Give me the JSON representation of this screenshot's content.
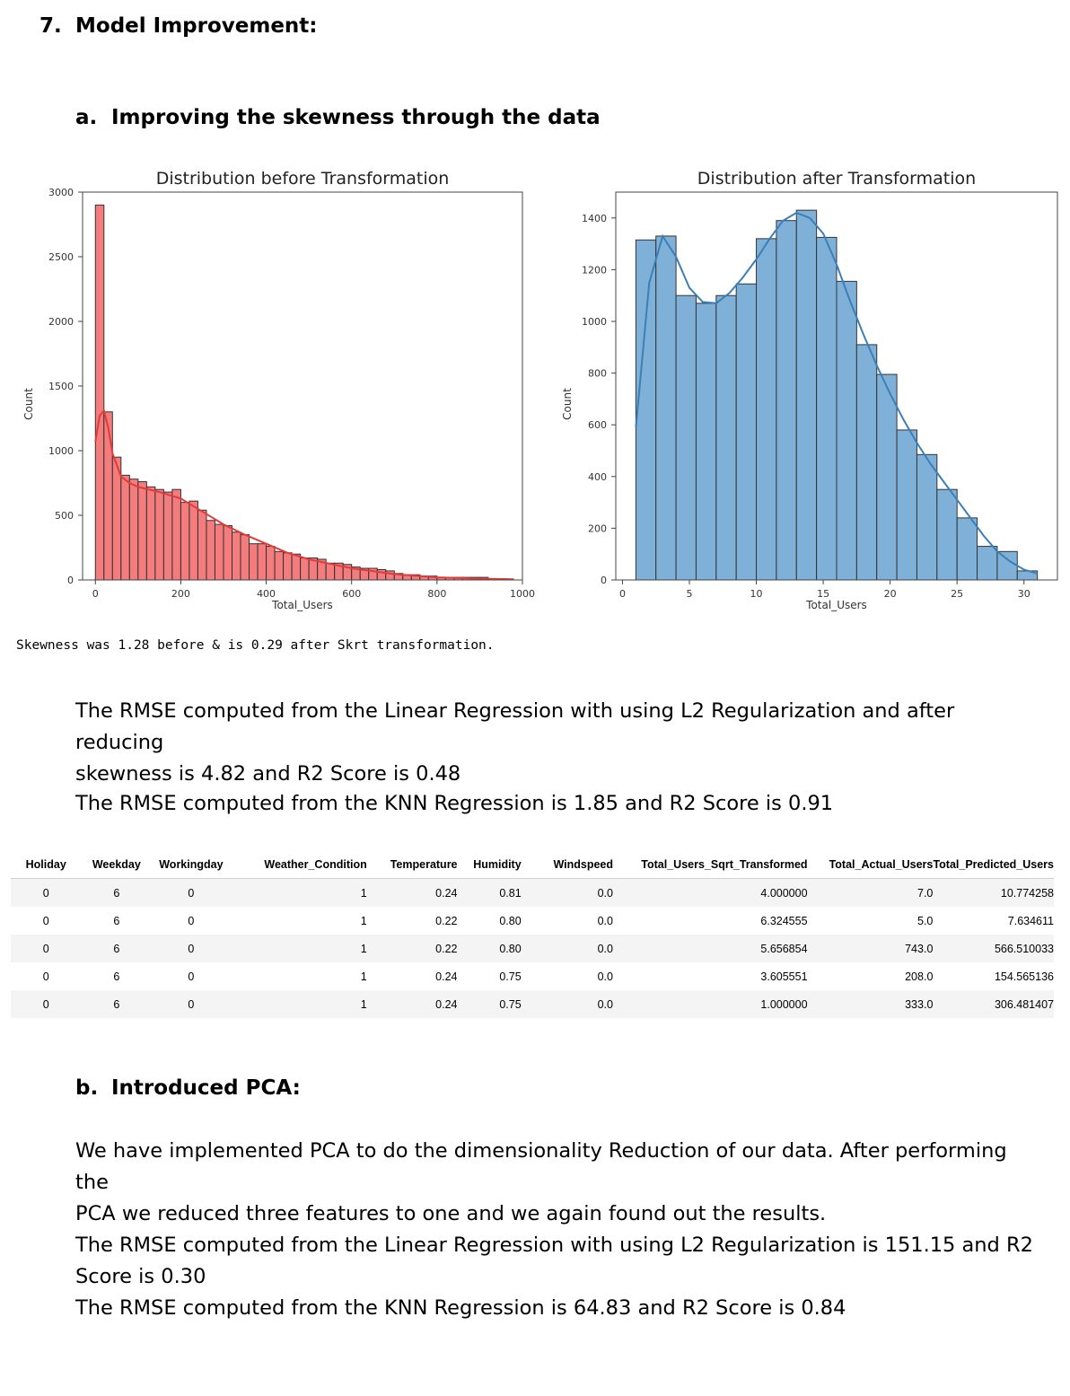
{
  "section": {
    "number": "7.",
    "title": "Model Improvement:"
  },
  "sub_a": {
    "letter": "a.",
    "title": "Improving the skewness through the data"
  },
  "chart_data": [
    {
      "type": "bar",
      "title": "Distribution before Transformation",
      "xlabel": "Total_Users",
      "ylabel": "Count",
      "xlim": [
        -30,
        1000
      ],
      "ylim": [
        0,
        3000
      ],
      "xticks": [
        0,
        200,
        400,
        600,
        800,
        1000
      ],
      "yticks": [
        0,
        500,
        1000,
        1500,
        2000,
        2500,
        3000
      ],
      "bin_width": 20,
      "bin_start": 0,
      "values": [
        2900,
        1300,
        950,
        810,
        780,
        760,
        720,
        700,
        680,
        700,
        600,
        610,
        540,
        460,
        430,
        420,
        370,
        350,
        280,
        280,
        260,
        220,
        210,
        200,
        170,
        170,
        160,
        130,
        130,
        120,
        100,
        90,
        90,
        80,
        70,
        50,
        40,
        40,
        30,
        30,
        20,
        20,
        20,
        20,
        20,
        20,
        10,
        10
      ],
      "kde_x": [
        0,
        10,
        20,
        30,
        40,
        60,
        80,
        100,
        150,
        200,
        250,
        300,
        350,
        400,
        450,
        500,
        600,
        700,
        800,
        900,
        980
      ],
      "kde_y": [
        1070,
        1270,
        1310,
        1180,
        980,
        800,
        750,
        720,
        680,
        630,
        530,
        430,
        350,
        280,
        210,
        160,
        90,
        45,
        20,
        10,
        5
      ],
      "bar_color": "#f47c7c",
      "line_color": "#e33a3a"
    },
    {
      "type": "bar",
      "title": "Distribution after Transformation",
      "xlabel": "Total_Users",
      "ylabel": "Count",
      "xlim": [
        -0.5,
        32.5
      ],
      "ylim": [
        0,
        1500
      ],
      "xticks": [
        0,
        5,
        10,
        15,
        20,
        25,
        30
      ],
      "yticks": [
        0,
        200,
        400,
        600,
        800,
        1000,
        1200,
        1400
      ],
      "bin_width": 1.5,
      "bin_start": 1,
      "values": [
        1315,
        1330,
        1100,
        1070,
        1100,
        1145,
        1320,
        1390,
        1430,
        1325,
        1155,
        910,
        795,
        580,
        485,
        350,
        240,
        130,
        110,
        35
      ],
      "kde_x": [
        1,
        2,
        3,
        4,
        5,
        6,
        7,
        8,
        9,
        10,
        11,
        12,
        13,
        14,
        15,
        16,
        17,
        18,
        19,
        20,
        21,
        22,
        23,
        24,
        25,
        26,
        27,
        28,
        29,
        30,
        31
      ],
      "kde_y": [
        590,
        1150,
        1330,
        1250,
        1130,
        1075,
        1070,
        1110,
        1170,
        1240,
        1320,
        1390,
        1420,
        1400,
        1340,
        1220,
        1080,
        950,
        830,
        720,
        620,
        530,
        450,
        380,
        310,
        240,
        170,
        110,
        70,
        40,
        25
      ],
      "bar_color": "#7fb1d8",
      "line_color": "#3b7fb8"
    }
  ],
  "skewness_note": "Skewness was 1.28 before & is 0.29 after Skrt transformation.",
  "para1_line1": "The RMSE computed from the Linear Regression with using L2 Regularization and after reducing",
  "para1_line2": "skewness is 4.82 and R2 Score is 0.48",
  "para2": "The RMSE computed from the KNN Regression is 1.85 and R2 Score is 0.91",
  "table": {
    "headers": [
      "Holiday",
      "Weekday",
      "Workingday",
      "Weather_Condition",
      "Temperature",
      "Humidity",
      "Windspeed",
      "Total_Users_Sqrt_Transformed",
      "Total_Actual_Users",
      "Total_Predicted_Users"
    ],
    "rows": [
      [
        "0",
        "6",
        "0",
        "1",
        "0.24",
        "0.81",
        "0.0",
        "4.000000",
        "7.0",
        "10.774258"
      ],
      [
        "0",
        "6",
        "0",
        "1",
        "0.22",
        "0.80",
        "0.0",
        "6.324555",
        "5.0",
        "7.634611"
      ],
      [
        "0",
        "6",
        "0",
        "1",
        "0.22",
        "0.80",
        "0.0",
        "5.656854",
        "743.0",
        "566.510033"
      ],
      [
        "0",
        "6",
        "0",
        "1",
        "0.24",
        "0.75",
        "0.0",
        "3.605551",
        "208.0",
        "154.565136"
      ],
      [
        "0",
        "6",
        "0",
        "1",
        "0.24",
        "0.75",
        "0.0",
        "1.000000",
        "333.0",
        "306.481407"
      ]
    ]
  },
  "sub_b": {
    "letter": "b.",
    "title": "Introduced PCA:"
  },
  "pca_line1": "We have implemented PCA to do the dimensionality Reduction of our data. After performing the",
  "pca_line2": "PCA we reduced three features to one and we again found out the results.",
  "pca_line3": "The RMSE computed from the Linear Regression with using L2 Regularization is 151.15 and R2",
  "pca_line4": "Score is 0.30",
  "pca_line5": "The RMSE computed from the KNN Regression is 64.83 and R2 Score is 0.84"
}
